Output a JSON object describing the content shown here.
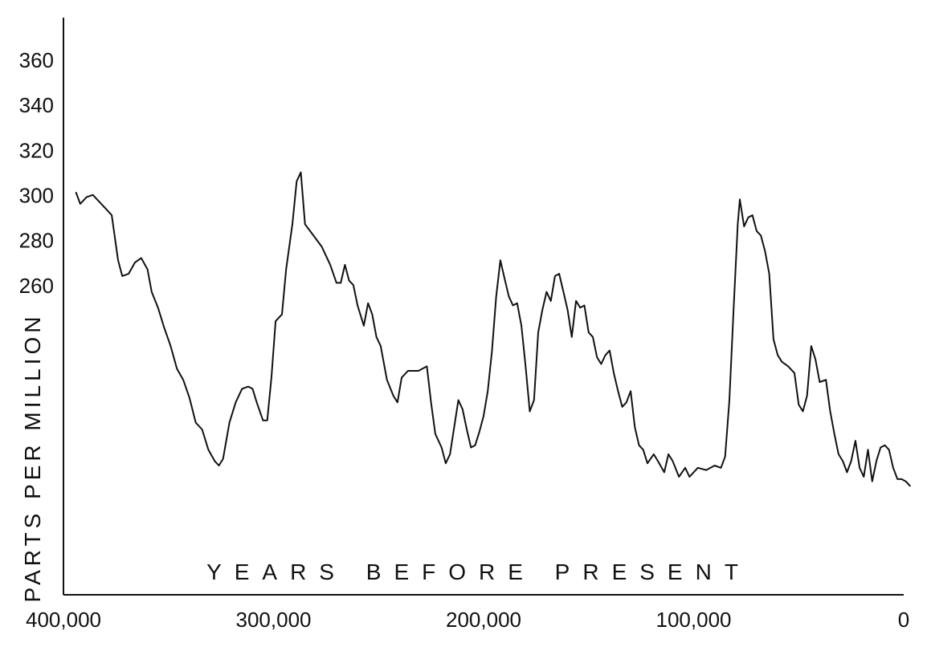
{
  "chart_data": {
    "type": "line",
    "title": "",
    "xlabel": "YEARS BEFORE PRESENT",
    "ylabel": "PARTS PER MILLION",
    "x_reversed": true,
    "xlim": [
      400000,
      0
    ],
    "ylim": [
      180,
      370
    ],
    "grid": false,
    "x_ticks": [
      {
        "value": 400000,
        "label": "400,000"
      },
      {
        "value": 300000,
        "label": "300,000"
      },
      {
        "value": 200000,
        "label": "200,000"
      },
      {
        "value": 100000,
        "label": "100,000"
      },
      {
        "value": 0,
        "label": "0"
      }
    ],
    "y_ticks": [
      {
        "value": 360,
        "label": "360"
      },
      {
        "value": 340,
        "label": "340"
      },
      {
        "value": 320,
        "label": "320"
      },
      {
        "value": 300,
        "label": "300"
      },
      {
        "value": 280,
        "label": "280"
      },
      {
        "value": 260,
        "label": "260"
      }
    ],
    "series": [
      {
        "color": "#111111",
        "points": [
          [
            394000,
            302
          ],
          [
            392000,
            297
          ],
          [
            389000,
            300
          ],
          [
            386000,
            301
          ],
          [
            380000,
            295
          ],
          [
            377000,
            292
          ],
          [
            374000,
            272
          ],
          [
            372000,
            265
          ],
          [
            369000,
            266
          ],
          [
            366000,
            271
          ],
          [
            363000,
            273
          ],
          [
            360000,
            268
          ],
          [
            358000,
            258
          ],
          [
            355000,
            251
          ],
          [
            352000,
            242
          ],
          [
            349000,
            234
          ],
          [
            346000,
            224
          ],
          [
            343000,
            219
          ],
          [
            340000,
            211
          ],
          [
            337000,
            200
          ],
          [
            334000,
            197
          ],
          [
            331000,
            188
          ],
          [
            328000,
            183
          ],
          [
            326000,
            181
          ],
          [
            324000,
            184
          ],
          [
            321000,
            200
          ],
          [
            318000,
            209
          ],
          [
            315000,
            215
          ],
          [
            312000,
            216
          ],
          [
            310000,
            215
          ],
          [
            308000,
            209
          ],
          [
            305000,
            201
          ],
          [
            303000,
            201
          ],
          [
            301000,
            220
          ],
          [
            299000,
            245
          ],
          [
            296000,
            248
          ],
          [
            294000,
            268
          ],
          [
            291000,
            288
          ],
          [
            289000,
            307
          ],
          [
            287000,
            311
          ],
          [
            285000,
            288
          ],
          [
            281000,
            283
          ],
          [
            277000,
            278
          ],
          [
            273000,
            270
          ],
          [
            270000,
            262
          ],
          [
            268000,
            262
          ],
          [
            266000,
            270
          ],
          [
            264000,
            263
          ],
          [
            262000,
            261
          ],
          [
            260000,
            252
          ],
          [
            257000,
            243
          ],
          [
            255000,
            253
          ],
          [
            253000,
            248
          ],
          [
            251000,
            238
          ],
          [
            249000,
            234
          ],
          [
            246000,
            219
          ],
          [
            243000,
            212
          ],
          [
            241000,
            209
          ],
          [
            239000,
            220
          ],
          [
            236000,
            223
          ],
          [
            231000,
            223
          ],
          [
            227000,
            225
          ],
          [
            225000,
            209
          ],
          [
            223000,
            195
          ],
          [
            220000,
            189
          ],
          [
            218000,
            182
          ],
          [
            216000,
            186
          ],
          [
            214000,
            198
          ],
          [
            212000,
            210
          ],
          [
            210000,
            206
          ],
          [
            208000,
            197
          ],
          [
            206000,
            189
          ],
          [
            204000,
            190
          ],
          [
            202000,
            196
          ],
          [
            200000,
            203
          ],
          [
            198000,
            214
          ],
          [
            196000,
            232
          ],
          [
            194000,
            256
          ],
          [
            192000,
            272
          ],
          [
            190000,
            264
          ],
          [
            188000,
            256
          ],
          [
            186000,
            252
          ],
          [
            184000,
            253
          ],
          [
            182000,
            243
          ],
          [
            180000,
            225
          ],
          [
            178000,
            205
          ],
          [
            176000,
            210
          ],
          [
            174000,
            240
          ],
          [
            172000,
            250
          ],
          [
            170000,
            258
          ],
          [
            168000,
            254
          ],
          [
            166000,
            265
          ],
          [
            164000,
            266
          ],
          [
            162000,
            258
          ],
          [
            160000,
            250
          ],
          [
            158000,
            238
          ],
          [
            156000,
            254
          ],
          [
            154000,
            251
          ],
          [
            152000,
            252
          ],
          [
            150000,
            240
          ],
          [
            148000,
            238
          ],
          [
            146000,
            229
          ],
          [
            144000,
            226
          ],
          [
            142000,
            230
          ],
          [
            140000,
            232
          ],
          [
            138000,
            222
          ],
          [
            136000,
            214
          ],
          [
            134000,
            207
          ],
          [
            132000,
            209
          ],
          [
            130000,
            214
          ],
          [
            128000,
            198
          ],
          [
            126000,
            190
          ],
          [
            124000,
            188
          ],
          [
            122000,
            182
          ],
          [
            119000,
            186
          ],
          [
            117000,
            183
          ],
          [
            114000,
            178
          ],
          [
            112000,
            186
          ],
          [
            110000,
            183
          ],
          [
            107000,
            176
          ],
          [
            104000,
            180
          ],
          [
            102000,
            176
          ],
          [
            98000,
            180
          ],
          [
            94000,
            179
          ],
          [
            90000,
            181
          ],
          [
            87000,
            180
          ],
          [
            85000,
            185
          ],
          [
            83000,
            210
          ],
          [
            81000,
            250
          ],
          [
            79000,
            288
          ],
          [
            78000,
            299
          ],
          [
            76000,
            287
          ],
          [
            74000,
            291
          ],
          [
            72000,
            292
          ],
          [
            70000,
            285
          ],
          [
            68000,
            283
          ],
          [
            66000,
            276
          ],
          [
            64000,
            266
          ],
          [
            62000,
            237
          ],
          [
            60000,
            230
          ],
          [
            58000,
            227
          ],
          [
            55000,
            225
          ],
          [
            52000,
            222
          ],
          [
            50000,
            208
          ],
          [
            48000,
            205
          ],
          [
            46000,
            212
          ],
          [
            44000,
            234
          ],
          [
            42000,
            228
          ],
          [
            40000,
            218
          ],
          [
            37000,
            219
          ],
          [
            35000,
            205
          ],
          [
            33000,
            195
          ],
          [
            31000,
            186
          ],
          [
            29000,
            183
          ],
          [
            27000,
            178
          ],
          [
            25000,
            183
          ],
          [
            23000,
            192
          ],
          [
            21000,
            180
          ],
          [
            19000,
            176
          ],
          [
            17000,
            188
          ],
          [
            15000,
            174
          ],
          [
            13000,
            183
          ],
          [
            11000,
            189
          ],
          [
            9000,
            190
          ],
          [
            7000,
            188
          ],
          [
            5000,
            180
          ],
          [
            3000,
            175
          ],
          [
            1000,
            175
          ],
          [
            -1000,
            174
          ],
          [
            -3000,
            172
          ]
        ]
      }
    ]
  }
}
